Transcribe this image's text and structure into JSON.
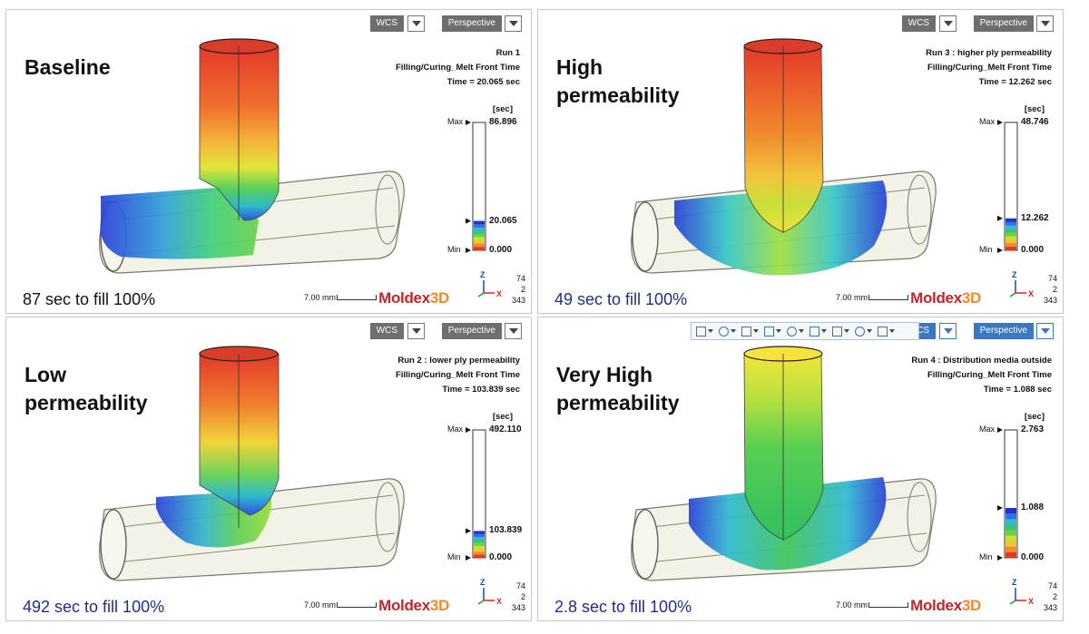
{
  "panels": [
    {
      "heading": "Baseline",
      "note": "87 sec to fill 100%",
      "note_color": "#111111",
      "run": "Run 1",
      "result": "Filling/Curing_Melt Front Time",
      "time": "Time = 20.065 sec",
      "legend": {
        "unit": "[sec]",
        "max_label": "Max",
        "max": "86.896",
        "current": "20.065",
        "min_label": "Min",
        "min": "0.000",
        "current_fraction": 0.23
      },
      "coord_btn": "WCS",
      "proj_btn": "Perspective",
      "scale": "7.00 mm",
      "logo_main": "Moldex",
      "logo_3d": "3D",
      "axis_z": "Z",
      "axis_x": "X",
      "counts": [
        "74",
        "2",
        "343"
      ]
    },
    {
      "heading": "High\npermeability",
      "note": "49 sec to fill 100%",
      "note_color": "#1f2d8c",
      "run": "Run 3 : higher ply permeability",
      "result": "Filling/Curing_Melt Front Time",
      "time": "Time = 12.262 sec",
      "legend": {
        "unit": "[sec]",
        "max_label": "Max",
        "max": "48.746",
        "current": "12.262",
        "min_label": "Min",
        "min": "0.000",
        "current_fraction": 0.25
      },
      "coord_btn": "WCS",
      "proj_btn": "Perspective",
      "scale": "7.00 mm",
      "logo_main": "Moldex",
      "logo_3d": "3D",
      "axis_z": "Z",
      "axis_x": "X",
      "counts": [
        "74",
        "2",
        "343"
      ]
    },
    {
      "heading": "Low\npermeability",
      "note": "492 sec to fill 100%",
      "note_color": "#1f2d8c",
      "run": "Run 2 : lower ply permeability",
      "result": "Filling/Curing_Melt Front Time",
      "time": "Time = 103.839 sec",
      "legend": {
        "unit": "[sec]",
        "max_label": "Max",
        "max": "492.110",
        "current": "103.839",
        "min_label": "Min",
        "min": "0.000",
        "current_fraction": 0.21
      },
      "coord_btn": "WCS",
      "proj_btn": "Perspective",
      "scale": "7.00 mm",
      "logo_main": "Moldex",
      "logo_3d": "3D",
      "axis_z": "Z",
      "axis_x": "X",
      "counts": [
        "74",
        "2",
        "343"
      ]
    },
    {
      "heading": "Very High\npermeability",
      "note": "2.8 sec to fill 100%",
      "note_color": "#1f2d8c",
      "run": "Run 4 : Distribution media outside",
      "result": "Filling/Curing_Melt Front Time",
      "time": "Time = 1.088 sec",
      "legend": {
        "unit": "[sec]",
        "max_label": "Max",
        "max": "2.763",
        "current": "1.088",
        "min_label": "Min",
        "min": "0.000",
        "current_fraction": 0.39
      },
      "coord_btn": "WCS",
      "proj_btn": "Perspective",
      "scale": "7.00 mm",
      "logo_main": "Moldex",
      "logo_3d": "3D",
      "axis_z": "Z",
      "axis_x": "X",
      "counts": [
        "74",
        "2",
        "343"
      ],
      "toolbar_icons": [
        "fit-view-icon",
        "pan-icon",
        "zoom-icon",
        "view-layout-icon",
        "cube-view-icon",
        "section-icon",
        "display-mode-icon",
        "visibility-icon",
        "mesh-icon"
      ]
    }
  ],
  "colors": {
    "filled_hot": "#e8432a",
    "filled_mid": "#f5d533",
    "front": "#1a3fcc",
    "empty_pipe": "#eeeede",
    "accent_blue": "#3c78c2",
    "logo_red": "#c0262d"
  }
}
